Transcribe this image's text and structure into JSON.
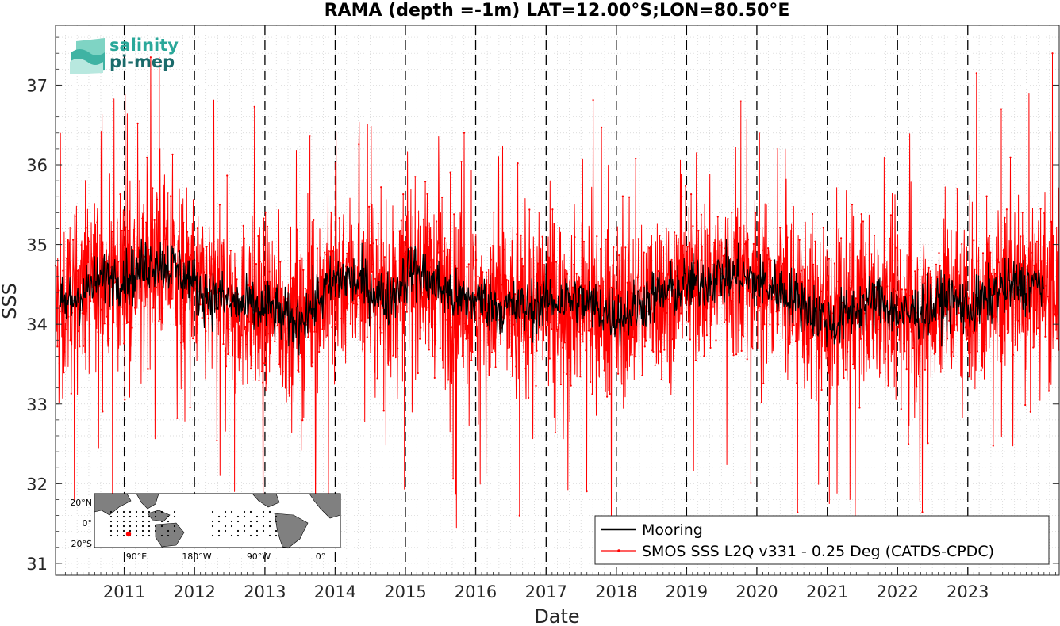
{
  "chart_data": {
    "type": "line",
    "title": "RAMA (depth =-1m) LAT=12.00°S;LON=80.50°E",
    "xlabel": "Date",
    "ylabel": "SSS",
    "xlim": [
      "2010-01-09",
      "2024-04-20"
    ],
    "ylim": [
      30.85,
      37.75
    ],
    "x_ticks": [
      "2011",
      "2012",
      "2013",
      "2014",
      "2015",
      "2016",
      "2017",
      "2018",
      "2019",
      "2020",
      "2021",
      "2022",
      "2023"
    ],
    "y_ticks": [
      "31",
      "32",
      "33",
      "34",
      "35",
      "36",
      "37"
    ],
    "grid": "minor dotted",
    "year_markers": "dashed vertical lines at Jan 1 of 2011–2023",
    "legend_position": "bottom-right",
    "series": [
      {
        "name": "Mooring",
        "color": "#000000",
        "style": "line",
        "x": [
          "2010-02-01",
          "2010-06-01",
          "2010-10-01",
          "2011-02-01",
          "2011-06-01",
          "2011-10-01",
          "2012-02-01",
          "2012-06-01",
          "2012-10-01",
          "2013-02-01",
          "2013-06-01",
          "2013-10-01",
          "2014-02-01",
          "2014-06-01",
          "2014-10-01",
          "2015-02-01",
          "2015-06-01",
          "2015-10-01",
          "2016-02-01",
          "2016-06-01",
          "2016-10-01",
          "2017-02-01",
          "2017-06-01",
          "2017-10-01",
          "2018-02-01",
          "2018-06-01",
          "2018-10-01",
          "2019-02-01",
          "2019-06-01",
          "2019-10-01",
          "2020-02-01",
          "2020-06-01",
          "2020-10-01",
          "2021-02-01",
          "2021-06-01",
          "2021-10-01",
          "2022-02-01",
          "2022-06-01",
          "2022-10-01",
          "2023-02-01",
          "2023-06-01",
          "2023-10-01",
          "2024-02-01"
        ],
        "values": [
          34.2,
          34.4,
          34.6,
          34.6,
          34.8,
          34.7,
          34.4,
          34.3,
          34.2,
          34.2,
          34.0,
          34.3,
          34.6,
          34.5,
          34.3,
          34.7,
          34.5,
          34.3,
          34.3,
          34.2,
          34.2,
          34.3,
          34.3,
          34.2,
          34.1,
          34.3,
          34.4,
          34.5,
          34.6,
          34.6,
          34.5,
          34.4,
          34.2,
          34.0,
          34.2,
          34.3,
          34.1,
          34.2,
          34.3,
          34.2,
          34.4,
          34.5,
          34.5
        ]
      },
      {
        "name": "SMOS SSS L2Q v331 - 0.25 Deg (CATDS-CPDC)",
        "color": "#ff0000",
        "style": "line-with-point-markers",
        "x": [
          "2010-02-01",
          "2010-06-01",
          "2010-10-01",
          "2011-02-01",
          "2011-06-01",
          "2011-10-01",
          "2012-02-01",
          "2012-06-01",
          "2012-10-01",
          "2013-02-01",
          "2013-06-01",
          "2013-10-01",
          "2014-02-01",
          "2014-06-01",
          "2014-10-01",
          "2015-02-01",
          "2015-06-01",
          "2015-10-01",
          "2016-02-01",
          "2016-06-01",
          "2016-10-01",
          "2017-02-01",
          "2017-06-01",
          "2017-10-01",
          "2018-02-01",
          "2018-06-01",
          "2018-10-01",
          "2019-02-01",
          "2019-06-01",
          "2019-10-01",
          "2020-02-01",
          "2020-06-01",
          "2020-10-01",
          "2021-02-01",
          "2021-06-01",
          "2021-10-01",
          "2022-02-01",
          "2022-06-01",
          "2022-10-01",
          "2023-02-01",
          "2023-06-01",
          "2023-10-01",
          "2024-02-01"
        ],
        "values": [
          34.2,
          34.4,
          34.6,
          34.6,
          34.8,
          34.7,
          34.4,
          34.3,
          34.2,
          34.2,
          34.0,
          34.3,
          34.6,
          34.5,
          34.3,
          34.7,
          34.5,
          34.3,
          34.3,
          34.2,
          34.2,
          34.3,
          34.3,
          34.2,
          34.1,
          34.3,
          34.4,
          34.5,
          34.6,
          34.6,
          34.5,
          34.4,
          34.2,
          34.0,
          34.2,
          34.3,
          34.1,
          34.2,
          34.3,
          34.2,
          34.4,
          34.5,
          34.5
        ],
        "spread": 0.75,
        "extremes": [
          {
            "x": "2011-07-06",
            "y": 36.2
          },
          {
            "x": "2012-07-27",
            "y": 31.9
          },
          {
            "x": "2016-08-16",
            "y": 31.6
          },
          {
            "x": "2019-10-10",
            "y": 36.8
          },
          {
            "x": "2020-01-15",
            "y": 36.4
          },
          {
            "x": "2022-11-07",
            "y": 35.7
          },
          {
            "x": "2023-06-24",
            "y": 36.7
          },
          {
            "x": "2023-11-15",
            "y": 36.9
          },
          {
            "x": "2024-03-16",
            "y": 37.4
          }
        ]
      }
    ]
  },
  "logo": {
    "line1": "salinity",
    "line2": "pi-mep",
    "color1": "#2aa89a",
    "color2": "#1b6b6b"
  },
  "inset_map": {
    "lat_labels": [
      "20°N",
      "0°",
      "20°S"
    ],
    "lon_labels": [
      "90°E",
      "180°W",
      "90°W",
      "0°"
    ],
    "land_color": "#808080",
    "ocean_color": "#ffffff",
    "marker_color": "#ff0000"
  }
}
